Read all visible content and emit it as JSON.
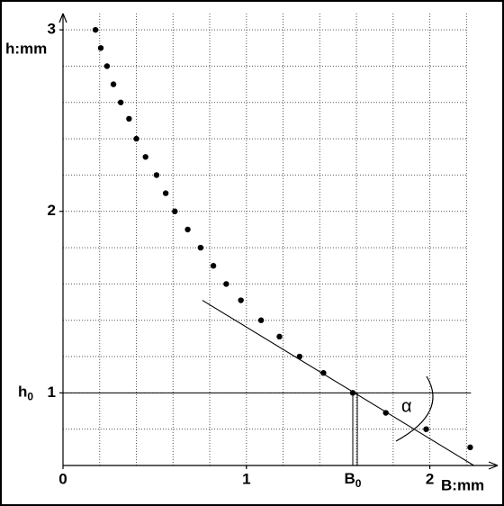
{
  "chart_data": {
    "type": "scatter",
    "x_label": "B:mm",
    "y_label": "h:mm",
    "x": [
      0.177,
      0.206,
      0.24,
      0.275,
      0.315,
      0.36,
      0.4,
      0.45,
      0.51,
      0.56,
      0.61,
      0.68,
      0.75,
      0.82,
      0.89,
      0.97,
      1.08,
      1.18,
      1.29,
      1.42,
      1.58,
      1.76,
      1.98,
      2.22
    ],
    "values": [
      3.0,
      2.9,
      2.8,
      2.7,
      2.6,
      2.51,
      2.4,
      2.3,
      2.2,
      2.1,
      2.0,
      1.9,
      1.8,
      1.7,
      1.6,
      1.51,
      1.4,
      1.31,
      1.2,
      1.11,
      1.0,
      0.89,
      0.8,
      0.7
    ],
    "color": "#000000",
    "xlim": [
      0,
      2.37
    ],
    "ylim": [
      0.6,
      3.09
    ],
    "xticks": [
      0,
      1,
      2
    ],
    "yticks": [
      1,
      2,
      3
    ],
    "x_gridlines": [
      0.2,
      0.4,
      0.6,
      0.8,
      1,
      1.2,
      1.4,
      1.6,
      1.8,
      2,
      2.2
    ],
    "y_gridlines": [
      0.8,
      1,
      1.2,
      1.4,
      1.6,
      1.8,
      2,
      2.2,
      2.4,
      2.6,
      2.8,
      3
    ],
    "grid": true,
    "tangent": {
      "x": [
        0.76,
        2.24
      ],
      "values": [
        1.51,
        0.6
      ]
    },
    "h0": {
      "text": "h",
      "subscript": "0",
      "value": 1
    },
    "B0": {
      "text": "B",
      "subscript": "0",
      "value": 1.58
    },
    "angle_label": "α"
  }
}
